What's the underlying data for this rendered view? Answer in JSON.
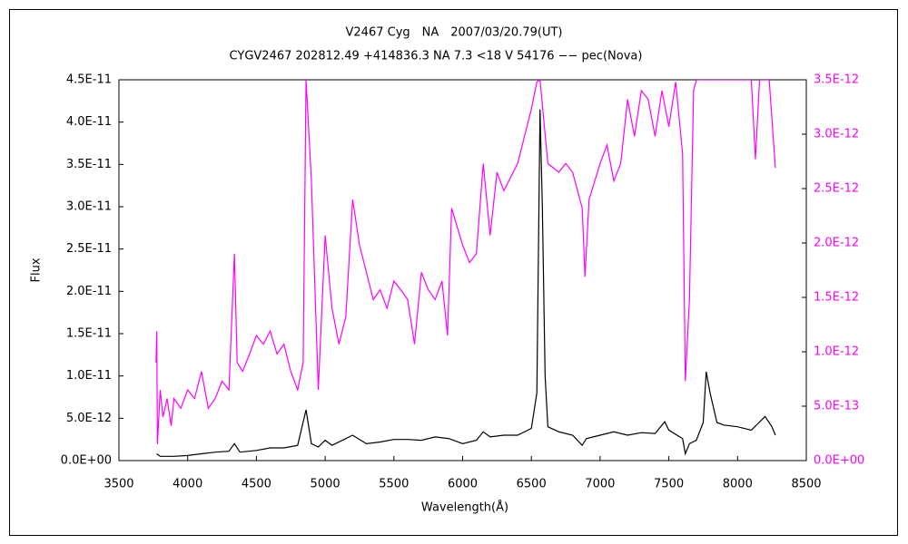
{
  "chart_data": {
    "type": "line",
    "title": "V2467 Cyg　NA　2007/03/20.79(UT)",
    "subtitle": "CYGV2467 202812.49 +414836.3 NA 7.3 <18 V 54176 −− pec(Nova)",
    "x_label": "Wavelength(Å)",
    "y_label": "Flux",
    "xlim": [
      3500,
      8500
    ],
    "xticks": [
      3500,
      4000,
      4500,
      5000,
      5500,
      6000,
      6500,
      7000,
      7500,
      8000,
      8500
    ],
    "ylim": [
      0,
      4.5e-11
    ],
    "yticks": [
      {
        "value": 0,
        "label": "0.0E+00"
      },
      {
        "value": 5e-12,
        "label": "5.0E-12"
      },
      {
        "value": 1e-11,
        "label": "1.0E-11"
      },
      {
        "value": 1.5e-11,
        "label": "1.5E-11"
      },
      {
        "value": 2e-11,
        "label": "2.0E-11"
      },
      {
        "value": 2.5e-11,
        "label": "2.5E-11"
      },
      {
        "value": 3e-11,
        "label": "3.0E-11"
      },
      {
        "value": 3.5e-11,
        "label": "3.5E-11"
      },
      {
        "value": 4e-11,
        "label": "4.0E-11"
      },
      {
        "value": 4.5e-11,
        "label": "4.5E-11"
      }
    ],
    "y2lim": [
      0,
      3.5e-12
    ],
    "y2ticks": [
      {
        "value": 0,
        "label": "0.0E+00"
      },
      {
        "value": 5e-13,
        "label": "5.0E-13"
      },
      {
        "value": 1e-12,
        "label": "1.0E-12"
      },
      {
        "value": 1.5e-12,
        "label": "1.5E-12"
      },
      {
        "value": 2e-12,
        "label": "2.0E-12"
      },
      {
        "value": 2.5e-12,
        "label": "2.5E-12"
      },
      {
        "value": 3e-12,
        "label": "3.0E-12"
      },
      {
        "value": 3.5e-12,
        "label": "3.5E-12"
      }
    ],
    "y2color": "#ff00ff",
    "series": [
      {
        "color": "#000000",
        "x": [
          3775,
          3800,
          3900,
          4000,
          4100,
          4200,
          4300,
          4340,
          4380,
          4500,
          4600,
          4700,
          4800,
          4861,
          4900,
          4950,
          5000,
          5050,
          5200,
          5300,
          5400,
          5500,
          5600,
          5700,
          5800,
          5900,
          6000,
          6100,
          6150,
          6200,
          6300,
          6400,
          6500,
          6540,
          6563,
          6580,
          6600,
          6620,
          6700,
          6800,
          6870,
          6900,
          7000,
          7100,
          7200,
          7300,
          7400,
          7470,
          7500,
          7600,
          7620,
          7650,
          7700,
          7750,
          7772,
          7800,
          7850,
          7900,
          8000,
          8100,
          8200,
          8250,
          8275
        ],
        "values": [
          8e-13,
          5e-13,
          5e-13,
          6e-13,
          8e-13,
          1e-12,
          1.1e-12,
          2e-12,
          1e-12,
          1.2e-12,
          1.5e-12,
          1.5e-12,
          1.8e-12,
          6e-12,
          2e-12,
          1.6e-12,
          2.4e-12,
          1.8e-12,
          3e-12,
          2e-12,
          2.2e-12,
          2.5e-12,
          2.5e-12,
          2.4e-12,
          2.8e-12,
          2.6e-12,
          2e-12,
          2.4e-12,
          3.4e-12,
          2.8e-12,
          3e-12,
          3e-12,
          3.8e-12,
          8e-12,
          4.15e-11,
          3e-11,
          1e-11,
          4e-12,
          3.4e-12,
          3e-12,
          1.8e-12,
          2.6e-12,
          3e-12,
          3.4e-12,
          3e-12,
          3.3e-12,
          3.2e-12,
          4.6e-12,
          3.6e-12,
          2.6e-12,
          8e-13,
          2e-12,
          2.4e-12,
          4.5e-12,
          1.05e-11,
          8e-12,
          4.5e-12,
          4.2e-12,
          4e-12,
          3.6e-12,
          5.2e-12,
          4e-12,
          3e-12
        ]
      },
      {
        "color": "#ff00ff",
        "axis": "y2",
        "x": [
          3770,
          3775,
          3780,
          3800,
          3820,
          3850,
          3880,
          3900,
          3950,
          4000,
          4050,
          4100,
          4150,
          4200,
          4250,
          4300,
          4340,
          4360,
          4400,
          4450,
          4500,
          4550,
          4600,
          4650,
          4700,
          4750,
          4800,
          4840,
          4861,
          4900,
          4950,
          5000,
          5050,
          5100,
          5150,
          5200,
          5250,
          5300,
          5350,
          5400,
          5450,
          5500,
          5550,
          5600,
          5650,
          5700,
          5750,
          5800,
          5850,
          5890,
          5920,
          6000,
          6050,
          6100,
          6150,
          6200,
          6250,
          6300,
          6400,
          6450,
          6500,
          6540,
          6563,
          6620,
          6700,
          6750,
          6800,
          6870,
          6890,
          6920,
          7000,
          7050,
          7100,
          7150,
          7200,
          7250,
          7300,
          7350,
          7400,
          7450,
          7500,
          7550,
          7600,
          7620,
          7650,
          7680,
          7700,
          8100,
          8130,
          8160,
          8230,
          8275
        ],
        "values": [
          9e-13,
          1.19e-12,
          1.5e-13,
          6.5e-13,
          4e-13,
          5.7e-13,
          3.2e-13,
          5.7e-13,
          4.8e-13,
          6.5e-13,
          5.7e-13,
          8.2e-13,
          4.8e-13,
          5.7e-13,
          7.3e-13,
          6.5e-13,
          1.9e-12,
          9e-13,
          8.2e-13,
          9.8e-13,
          1.15e-12,
          1.07e-12,
          1.19e-12,
          9.8e-13,
          1.07e-12,
          8.2e-13,
          6.5e-13,
          9e-13,
          3.5e-12,
          2.57e-12,
          6.5e-13,
          2.07e-12,
          1.4e-12,
          1.07e-12,
          1.32e-12,
          2.4e-12,
          1.98e-12,
          1.73e-12,
          1.48e-12,
          1.57e-12,
          1.4e-12,
          1.65e-12,
          1.57e-12,
          1.48e-12,
          1.07e-12,
          1.73e-12,
          1.57e-12,
          1.48e-12,
          1.65e-12,
          1.15e-12,
          2.32e-12,
          1.98e-12,
          1.82e-12,
          1.9e-12,
          2.73e-12,
          2.07e-12,
          2.65e-12,
          2.48e-12,
          2.73e-12,
          2.98e-12,
          3.23e-12,
          3.48e-12,
          3.5e-12,
          2.73e-12,
          2.65e-12,
          2.73e-12,
          2.65e-12,
          2.32e-12,
          1.69e-12,
          2.4e-12,
          2.73e-12,
          2.9e-12,
          2.57e-12,
          2.73e-12,
          3.32e-12,
          2.98e-12,
          3.4e-12,
          3.32e-12,
          2.98e-12,
          3.4e-12,
          3.07e-12,
          3.48e-12,
          2.82e-12,
          7.3e-13,
          1.48e-12,
          3.4e-12,
          3.5e-12,
          3.5e-12,
          2.77e-12,
          3.5e-12,
          3.5e-12,
          2.69e-12
        ]
      }
    ]
  }
}
